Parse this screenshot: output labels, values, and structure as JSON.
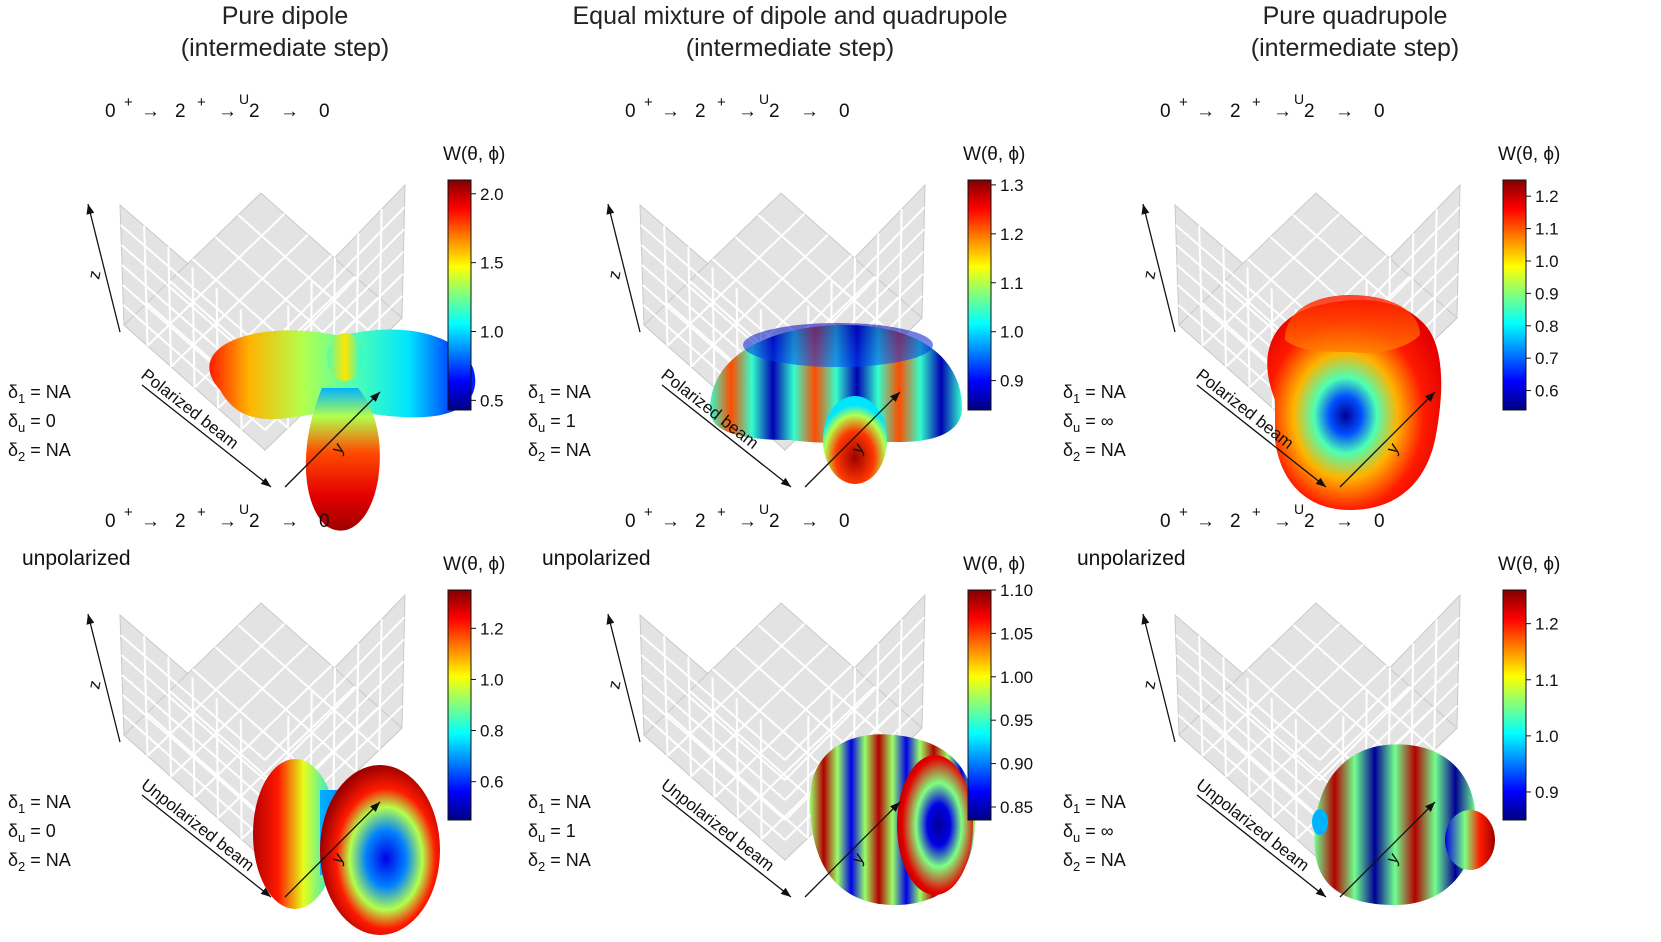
{
  "column_titles": [
    {
      "line1": "Pure dipole",
      "line2": "(intermediate step)"
    },
    {
      "line1": "Equal mixture of dipole and quadrupole",
      "line2": "(intermediate step)"
    },
    {
      "line1": "Pure quadrupole",
      "line2": "(intermediate step)"
    }
  ],
  "transition": {
    "s0": "0",
    "p0": "+",
    "a1": "→",
    "s1": "2",
    "p1": "+",
    "u": "U",
    "a2": "→",
    "s2": "2",
    "a3": "→",
    "s3": "0"
  },
  "axes": {
    "z": "z",
    "y": "y",
    "beam_polarized": "Polarized beam",
    "beam_unpolarized": "Unpolarized beam"
  },
  "unpolarized_label": "unpolarized",
  "delta_symbols": {
    "d": "δ",
    "sub1": "1",
    "subu": "u",
    "sub2": "2",
    "eq": " = "
  },
  "legend_title": "W(θ, ϕ)",
  "chart_data": [
    {
      "type": "heatmap",
      "title": "Pure dipole (intermediate step)",
      "beam": "Polarized beam",
      "shape": "dipole_pol",
      "legend_title": "W(θ, ϕ)",
      "colorscale": "jet",
      "crange": [
        0.43,
        2.1
      ],
      "ticks": [
        "2.0",
        "1.5",
        "1.0",
        "0.5"
      ],
      "tick_values": [
        2.0,
        1.5,
        1.0,
        0.5
      ],
      "delta1": "NA",
      "deltau": "0",
      "delta2": "NA",
      "unpolarized": false
    },
    {
      "type": "heatmap",
      "title": "Equal mixture of dipole and quadrupole (intermediate step)",
      "beam": "Polarized beam",
      "shape": "mix_pol",
      "legend_title": "W(θ, ϕ)",
      "colorscale": "jet",
      "crange": [
        0.84,
        1.31
      ],
      "ticks": [
        "1.3",
        "1.2",
        "1.1",
        "1.0",
        "0.9"
      ],
      "tick_values": [
        1.3,
        1.2,
        1.1,
        1.0,
        0.9
      ],
      "delta1": "NA",
      "deltau": "1",
      "delta2": "NA",
      "unpolarized": false
    },
    {
      "type": "heatmap",
      "title": "Pure quadrupole (intermediate step)",
      "beam": "Polarized beam",
      "shape": "quad_pol",
      "legend_title": "W(θ, ϕ)",
      "colorscale": "jet",
      "crange": [
        0.54,
        1.25
      ],
      "ticks": [
        "1.2",
        "1.1",
        "1.0",
        "0.9",
        "0.8",
        "0.7",
        "0.6"
      ],
      "tick_values": [
        1.2,
        1.1,
        1.0,
        0.9,
        0.8,
        0.7,
        0.6
      ],
      "delta1": "NA",
      "deltau": "∞",
      "delta2": "NA",
      "unpolarized": false
    },
    {
      "type": "heatmap",
      "title": "Pure dipole (intermediate step)",
      "beam": "Unpolarized beam",
      "shape": "dipole_unpol",
      "legend_title": "W(θ, ϕ)",
      "colorscale": "jet",
      "crange": [
        0.45,
        1.35
      ],
      "ticks": [
        "1.2",
        "1.0",
        "0.8",
        "0.6"
      ],
      "tick_values": [
        1.2,
        1.0,
        0.8,
        0.6
      ],
      "delta1": "NA",
      "deltau": "0",
      "delta2": "NA",
      "unpolarized": true
    },
    {
      "type": "heatmap",
      "title": "Equal mixture of dipole and quadrupole (intermediate step)",
      "beam": "Unpolarized beam",
      "shape": "mix_unpol",
      "legend_title": "W(θ, ϕ)",
      "colorscale": "jet",
      "crange": [
        0.835,
        1.1
      ],
      "ticks": [
        "1.10",
        "1.05",
        "1.00",
        "0.95",
        "0.90",
        "0.85"
      ],
      "tick_values": [
        1.1,
        1.05,
        1.0,
        0.95,
        0.9,
        0.85
      ],
      "delta1": "NA",
      "deltau": "1",
      "delta2": "NA",
      "unpolarized": true
    },
    {
      "type": "heatmap",
      "title": "Pure quadrupole (intermediate step)",
      "beam": "Unpolarized beam",
      "shape": "quad_unpol",
      "legend_title": "W(θ, ϕ)",
      "colorscale": "jet",
      "crange": [
        0.85,
        1.26
      ],
      "ticks": [
        "1.2",
        "1.1",
        "1.0",
        "0.9"
      ],
      "tick_values": [
        1.2,
        1.1,
        1.0,
        0.9
      ],
      "delta1": "NA",
      "deltau": "∞",
      "delta2": "NA",
      "unpolarized": true
    }
  ]
}
